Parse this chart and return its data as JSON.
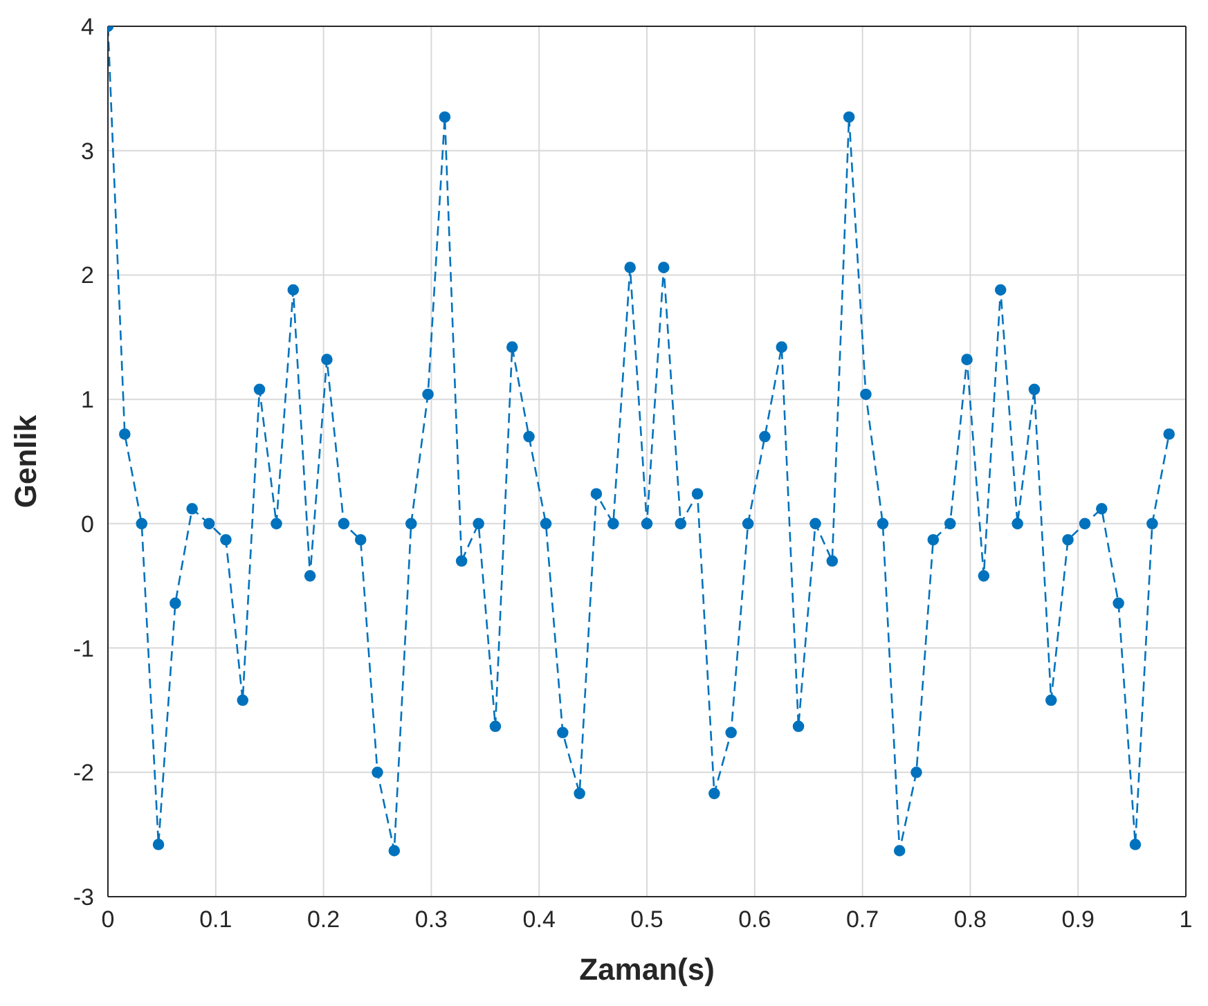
{
  "chart_data": {
    "type": "line",
    "xlabel": "Zaman(s)",
    "ylabel": "Genlik",
    "x": [
      0,
      0.0156,
      0.0313,
      0.0469,
      0.0625,
      0.0781,
      0.0938,
      0.1094,
      0.125,
      0.1406,
      0.1563,
      0.1719,
      0.1875,
      0.2031,
      0.2188,
      0.2344,
      0.25,
      0.2656,
      0.2813,
      0.2969,
      0.3125,
      0.3281,
      0.3438,
      0.3594,
      0.375,
      0.3906,
      0.4063,
      0.4219,
      0.4375,
      0.4531,
      0.4688,
      0.4844,
      0.5,
      0.5156,
      0.5313,
      0.5469,
      0.5625,
      0.5781,
      0.5938,
      0.6094,
      0.625,
      0.6406,
      0.6563,
      0.6719,
      0.6875,
      0.7031,
      0.7188,
      0.7344,
      0.75,
      0.7656,
      0.7813,
      0.7969,
      0.8125,
      0.8281,
      0.8438,
      0.8594,
      0.875,
      0.8906,
      0.9063,
      0.9219,
      0.9375,
      0.9531,
      0.9688,
      0.9844
    ],
    "series": [
      {
        "color": "#0072bd",
        "values": [
          4,
          0.72,
          0,
          -2.58,
          -0.64,
          0.12,
          0,
          -0.13,
          -1.42,
          1.08,
          0,
          1.88,
          -0.42,
          1.32,
          0,
          -0.13,
          -2,
          -2.63,
          0,
          1.04,
          3.27,
          -0.3,
          0,
          -1.63,
          1.42,
          0.7,
          0,
          -1.68,
          -2.17,
          0.24,
          0,
          2.06,
          0,
          2.06,
          0,
          0.24,
          -2.17,
          -1.68,
          0,
          0.7,
          1.42,
          -1.63,
          0,
          -0.3,
          3.27,
          1.04,
          0,
          -2.63,
          -2,
          -0.13,
          0,
          1.32,
          -0.42,
          1.88,
          0,
          1.08,
          -1.42,
          -0.13,
          0,
          0.12,
          -0.64,
          -2.58,
          0,
          0.72
        ]
      }
    ],
    "xlim": [
      0,
      1
    ],
    "xticks": [
      0,
      0.1,
      0.2,
      0.3,
      0.4,
      0.5,
      0.6,
      0.7,
      0.8,
      0.9,
      1
    ],
    "ylim": [
      -3,
      4
    ],
    "yticks": [
      -3,
      -2,
      -1,
      0,
      1,
      2,
      3,
      4
    ],
    "grid": true,
    "marker": "circle",
    "line_style": "dashed",
    "legend": false
  }
}
